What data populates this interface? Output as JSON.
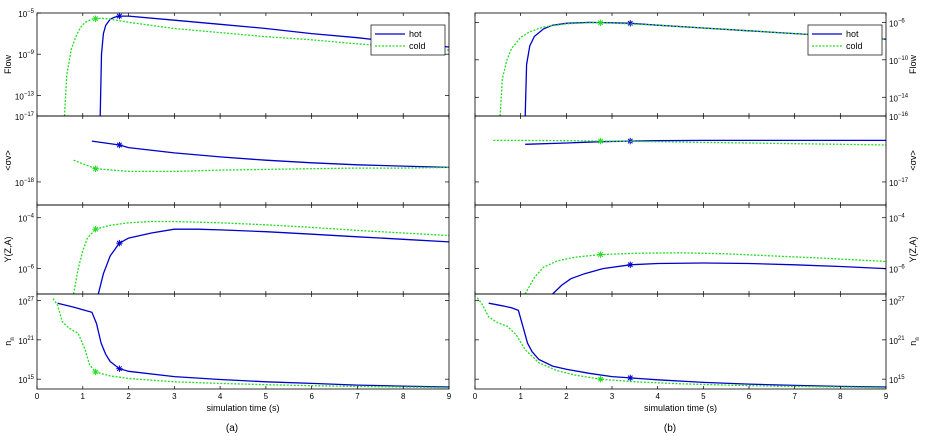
{
  "chart_data": [
    {
      "type": "line",
      "panel": "(a)",
      "xlabel": "simulation time (s)",
      "xlim": [
        0,
        9
      ],
      "xticks": [
        0,
        1,
        2,
        3,
        4,
        5,
        6,
        7,
        8,
        9
      ],
      "legend": {
        "position": "top-right",
        "entries": [
          "hot",
          "cold"
        ]
      },
      "series_style": [
        {
          "name": "hot",
          "color": "#0000cc",
          "dash": "solid"
        },
        {
          "name": "cold",
          "color": "#22dd22",
          "dash": "dotted"
        }
      ],
      "subplots": [
        {
          "ylabel": "Flow",
          "yscale": "log",
          "ylim_exp": [
            -15,
            -5
          ],
          "yticks": [
            {
              "exp": -5,
              "mant": "10",
              "sup": "−5"
            },
            {
              "exp": -9,
              "mant": "10",
              "sup": "−9"
            },
            {
              "exp": -13,
              "mant": "10",
              "sup": "−13"
            }
          ],
          "series": [
            {
              "name": "hot",
              "x": [
                1.38,
                1.41,
                1.45,
                1.5,
                1.6,
                1.7,
                1.8,
                1.9,
                2,
                3,
                4,
                5,
                6,
                7,
                8,
                9
              ],
              "y_exp": [
                -15,
                -9,
                -7,
                -6.2,
                -5.6,
                -5.4,
                -5.3,
                -5.3,
                -5.3,
                -5.7,
                -6.1,
                -6.5,
                -7,
                -7.4,
                -7.9,
                -8.3
              ],
              "marker_x": 1.8
            },
            {
              "name": "cold",
              "x": [
                0.6,
                0.65,
                0.75,
                0.85,
                0.95,
                1.05,
                1.2,
                1.4,
                1.6,
                2,
                3,
                4,
                5,
                6,
                7,
                8,
                9
              ],
              "y_exp": [
                -15,
                -11,
                -8.5,
                -7.3,
                -6.4,
                -5.9,
                -5.6,
                -5.5,
                -5.6,
                -5.9,
                -6.5,
                -6.9,
                -7.3,
                -7.6,
                -8,
                -8.3,
                -8.6
              ],
              "marker_x": 1.28
            }
          ]
        },
        {
          "ylabel": "<σv>",
          "yscale": "log",
          "ylim_exp": [
            -18.35,
            -17
          ],
          "yticks": [
            {
              "exp": -17,
              "mant": "10",
              "sup": "−17"
            },
            {
              "exp": -18,
              "mant": "10",
              "sup": "−18"
            }
          ],
          "series": [
            {
              "name": "hot",
              "x": [
                1.2,
                1.8,
                2,
                3,
                4,
                5,
                6,
                7,
                8,
                9
              ],
              "y_exp": [
                -17.38,
                -17.44,
                -17.48,
                -17.56,
                -17.62,
                -17.67,
                -17.71,
                -17.74,
                -17.76,
                -17.78
              ],
              "marker_x": 1.8
            },
            {
              "name": "cold",
              "x": [
                0.8,
                1.28,
                2,
                3,
                4,
                5,
                6,
                7,
                8,
                9
              ],
              "y_exp": [
                -17.67,
                -17.8,
                -17.84,
                -17.84,
                -17.82,
                -17.81,
                -17.8,
                -17.79,
                -17.79,
                -17.78
              ],
              "marker_x": 1.28
            }
          ]
        },
        {
          "ylabel": "Y(Z,A)",
          "yscale": "log",
          "ylim_exp": [
            -7,
            -3.5
          ],
          "yticks": [
            {
              "exp": -4,
              "mant": "10",
              "sup": "−4"
            },
            {
              "exp": -6,
              "mant": "10",
              "sup": "−6"
            }
          ],
          "series": [
            {
              "name": "hot",
              "x": [
                1.34,
                1.45,
                1.6,
                1.8,
                2,
                2.5,
                3,
                3.5,
                4,
                5,
                6,
                7,
                8,
                9
              ],
              "y_exp": [
                -7,
                -6.2,
                -5.5,
                -5.0,
                -4.8,
                -4.6,
                -4.45,
                -4.45,
                -4.48,
                -4.55,
                -4.65,
                -4.75,
                -4.85,
                -4.95
              ],
              "marker_x": 1.8
            },
            {
              "name": "cold",
              "x": [
                0.8,
                0.9,
                1,
                1.1,
                1.28,
                1.6,
                2,
                2.5,
                3,
                4,
                5,
                6,
                7,
                8,
                9
              ],
              "y_exp": [
                -7,
                -6,
                -5.3,
                -4.8,
                -4.45,
                -4.3,
                -4.2,
                -4.15,
                -4.15,
                -4.2,
                -4.28,
                -4.38,
                -4.5,
                -4.6,
                -4.7
              ],
              "marker_x": 1.28
            }
          ]
        },
        {
          "ylabel": "n_n",
          "yscale": "log",
          "ylim_exp": [
            13.5,
            28
          ],
          "yticks": [
            {
              "exp": 27,
              "mant": "10",
              "sup": "27"
            },
            {
              "exp": 21,
              "mant": "10",
              "sup": "21"
            },
            {
              "exp": 15,
              "mant": "10",
              "sup": "15"
            }
          ],
          "series": [
            {
              "name": "hot",
              "x": [
                0.45,
                0.8,
                1.0,
                1.2,
                1.3,
                1.4,
                1.5,
                1.6,
                1.8,
                2,
                3,
                4,
                5,
                6,
                7,
                8,
                9
              ],
              "y_exp": [
                26.6,
                26.0,
                25.6,
                25.2,
                23.5,
                20.5,
                18.8,
                17.7,
                16.6,
                16.2,
                15.4,
                14.95,
                14.6,
                14.35,
                14.1,
                13.95,
                13.8
              ],
              "marker_x": 1.8
            },
            {
              "name": "cold",
              "x": [
                0.35,
                0.45,
                0.55,
                0.7,
                0.9,
                1.05,
                1.15,
                1.28,
                1.6,
                2,
                3,
                4,
                5,
                6,
                7,
                8,
                9
              ],
              "y_exp": [
                27.3,
                26.3,
                23.8,
                22.8,
                22.0,
                19.5,
                17.2,
                16.1,
                15.5,
                15.1,
                14.6,
                14.35,
                14.15,
                14.0,
                13.9,
                13.8,
                13.7
              ],
              "marker_x": 1.28
            }
          ]
        }
      ]
    },
    {
      "type": "line",
      "panel": "(b)",
      "xlabel": "simulation time (s)",
      "xlim": [
        0,
        9
      ],
      "xticks": [
        0,
        1,
        2,
        3,
        4,
        5,
        6,
        7,
        8,
        9
      ],
      "legend": {
        "position": "top-right",
        "entries": [
          "hot",
          "cold"
        ]
      },
      "series_style": [
        {
          "name": "hot",
          "color": "#0000cc",
          "dash": "solid"
        },
        {
          "name": "cold",
          "color": "#22dd22",
          "dash": "dotted"
        }
      ],
      "subplots": [
        {
          "ylabel": "Flow",
          "yscale": "log",
          "ylim_exp": [
            -16,
            -5
          ],
          "yticks": [
            {
              "exp": -6,
              "mant": "10",
              "sup": "−6"
            },
            {
              "exp": -10,
              "mant": "10",
              "sup": "−10"
            },
            {
              "exp": -14,
              "mant": "10",
              "sup": "−14"
            }
          ],
          "series": [
            {
              "name": "hot",
              "x": [
                1.1,
                1.13,
                1.2,
                1.3,
                1.5,
                1.7,
                2,
                2.5,
                3,
                3.4,
                4,
                5,
                6,
                7,
                8,
                9
              ],
              "y_exp": [
                -16,
                -10.5,
                -8.5,
                -7.5,
                -6.7,
                -6.3,
                -6.1,
                -6.0,
                -6.05,
                -6.1,
                -6.3,
                -6.6,
                -6.9,
                -7.2,
                -7.5,
                -7.8
              ],
              "marker_x": 3.4
            },
            {
              "name": "cold",
              "x": [
                0.55,
                0.6,
                0.7,
                0.8,
                1,
                1.2,
                1.5,
                2,
                2.5,
                2.75,
                3,
                4,
                5,
                6,
                7,
                8,
                9
              ],
              "y_exp": [
                -16,
                -12,
                -10,
                -8.8,
                -7.6,
                -7.0,
                -6.5,
                -6.15,
                -6.05,
                -6.05,
                -6.08,
                -6.3,
                -6.6,
                -6.9,
                -7.2,
                -7.5,
                -7.8
              ],
              "marker_x": 2.75
            }
          ]
        },
        {
          "ylabel": "<σv>",
          "yscale": "log",
          "ylim_exp": [
            -17.35,
            -16
          ],
          "yticks": [
            {
              "exp": -16,
              "mant": "10",
              "sup": "−16"
            },
            {
              "exp": -17,
              "mant": "10",
              "sup": "−17"
            }
          ],
          "series": [
            {
              "name": "hot",
              "x": [
                1.1,
                2,
                2.75,
                3.4,
                4,
                5,
                6,
                7,
                8,
                9
              ],
              "y_exp": [
                -16.43,
                -16.41,
                -16.39,
                -16.38,
                -16.375,
                -16.37,
                -16.37,
                -16.37,
                -16.37,
                -16.37
              ],
              "marker_x": 3.4
            },
            {
              "name": "cold",
              "x": [
                0.4,
                1,
                2,
                2.75,
                3.4,
                4,
                5,
                6,
                7,
                8,
                9
              ],
              "y_exp": [
                -16.37,
                -16.37,
                -16.375,
                -16.38,
                -16.385,
                -16.39,
                -16.4,
                -16.41,
                -16.42,
                -16.43,
                -16.44
              ],
              "marker_x": 2.75
            }
          ]
        },
        {
          "ylabel": "Y(Z,A)",
          "yscale": "log",
          "ylim_exp": [
            -7,
            -3.5
          ],
          "yticks": [
            {
              "exp": -4,
              "mant": "10",
              "sup": "−4"
            },
            {
              "exp": -6,
              "mant": "10",
              "sup": "−6"
            }
          ],
          "series": [
            {
              "name": "hot",
              "x": [
                1.7,
                1.9,
                2.1,
                2.4,
                2.8,
                3.4,
                4,
                5,
                6,
                7,
                8,
                9
              ],
              "y_exp": [
                -7,
                -6.65,
                -6.4,
                -6.2,
                -6.0,
                -5.85,
                -5.8,
                -5.78,
                -5.8,
                -5.85,
                -5.92,
                -6.0
              ],
              "marker_x": 3.4
            },
            {
              "name": "cold",
              "x": [
                1.1,
                1.3,
                1.5,
                1.8,
                2.2,
                2.75,
                3.5,
                4.5,
                5.5,
                6.5,
                7.5,
                9
              ],
              "y_exp": [
                -7,
                -6.35,
                -5.95,
                -5.7,
                -5.55,
                -5.45,
                -5.4,
                -5.38,
                -5.42,
                -5.5,
                -5.58,
                -5.72
              ],
              "marker_x": 2.75
            }
          ]
        },
        {
          "ylabel": "n_n",
          "yscale": "log",
          "ylim_exp": [
            13.5,
            28
          ],
          "yticks": [
            {
              "exp": 27,
              "mant": "10",
              "sup": "27"
            },
            {
              "exp": 21,
              "mant": "10",
              "sup": "21"
            },
            {
              "exp": 15,
              "mant": "10",
              "sup": "15"
            }
          ],
          "series": [
            {
              "name": "hot",
              "x": [
                0.3,
                0.6,
                0.8,
                0.95,
                1.05,
                1.15,
                1.25,
                1.4,
                1.7,
                2,
                2.5,
                3,
                3.4,
                4,
                5,
                6,
                7,
                8,
                9
              ],
              "y_exp": [
                26.6,
                26.2,
                25.9,
                25.5,
                23.0,
                20.5,
                19.2,
                18.0,
                17.0,
                16.5,
                15.9,
                15.4,
                15.2,
                14.9,
                14.5,
                14.25,
                14.05,
                13.9,
                13.8
              ],
              "marker_x": 3.4
            },
            {
              "name": "cold",
              "x": [
                0.05,
                0.15,
                0.3,
                0.5,
                0.7,
                0.9,
                1.1,
                1.4,
                1.8,
                2.2,
                2.75,
                3.5,
                4.5,
                5.5,
                6.5,
                7.5,
                9
              ],
              "y_exp": [
                27.4,
                26.5,
                24.5,
                23.6,
                23.1,
                21.8,
                19.5,
                17.5,
                16.3,
                15.6,
                15.0,
                14.6,
                14.3,
                14.1,
                13.95,
                13.85,
                13.7
              ],
              "marker_x": 2.75
            }
          ]
        }
      ]
    }
  ]
}
